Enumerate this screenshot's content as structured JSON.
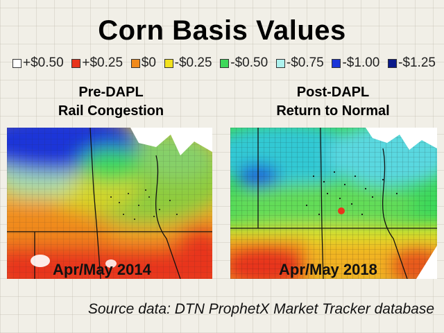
{
  "title": "Corn Basis Values",
  "legend": [
    {
      "label": "+$0.50",
      "color": "#ffffff"
    },
    {
      "label": "+$0.25",
      "color": "#e8341c"
    },
    {
      "label": "$0",
      "color": "#f08a1c"
    },
    {
      "label": "-$0.25",
      "color": "#f2e21e"
    },
    {
      "label": "-$0.50",
      "color": "#3ed85a"
    },
    {
      "label": "-$0.75",
      "color": "#aef2ee"
    },
    {
      "label": "-$1.00",
      "color": "#1a35d8"
    },
    {
      "label": "-$1.25",
      "color": "#0a1a8a"
    }
  ],
  "panels": {
    "left": {
      "title_line1": "Pre-DAPL",
      "title_line2": "Rail Congestion",
      "date": "Apr/May 2014"
    },
    "right": {
      "title_line1": "Post-DAPL",
      "title_line2": "Return to Normal",
      "date": "Apr/May 2018"
    }
  },
  "source": "Source data: DTN ProphetX Market Tracker database"
}
